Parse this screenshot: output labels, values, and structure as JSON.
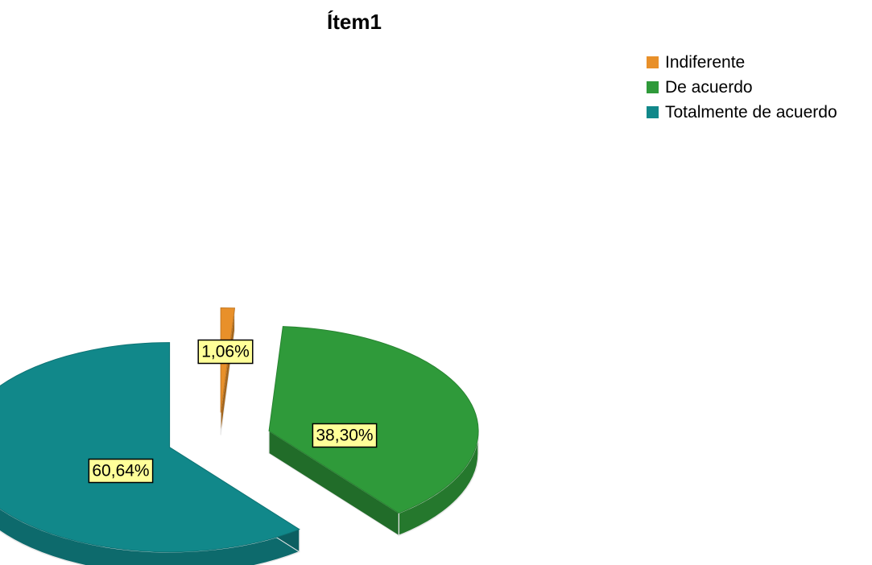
{
  "chart_data": {
    "type": "pie",
    "title": "Ítem1",
    "categories": [
      "Indiferente",
      "De acuerdo",
      "Totalmente de acuerdo"
    ],
    "values": [
      1.06,
      38.3,
      60.64
    ],
    "labels": [
      "1,06%",
      "38,30%",
      "60,64%"
    ],
    "colors": [
      "#e8902a",
      "#2f9a3a",
      "#11888a"
    ],
    "legend_position": "top-right",
    "style": "3d-exploded"
  }
}
